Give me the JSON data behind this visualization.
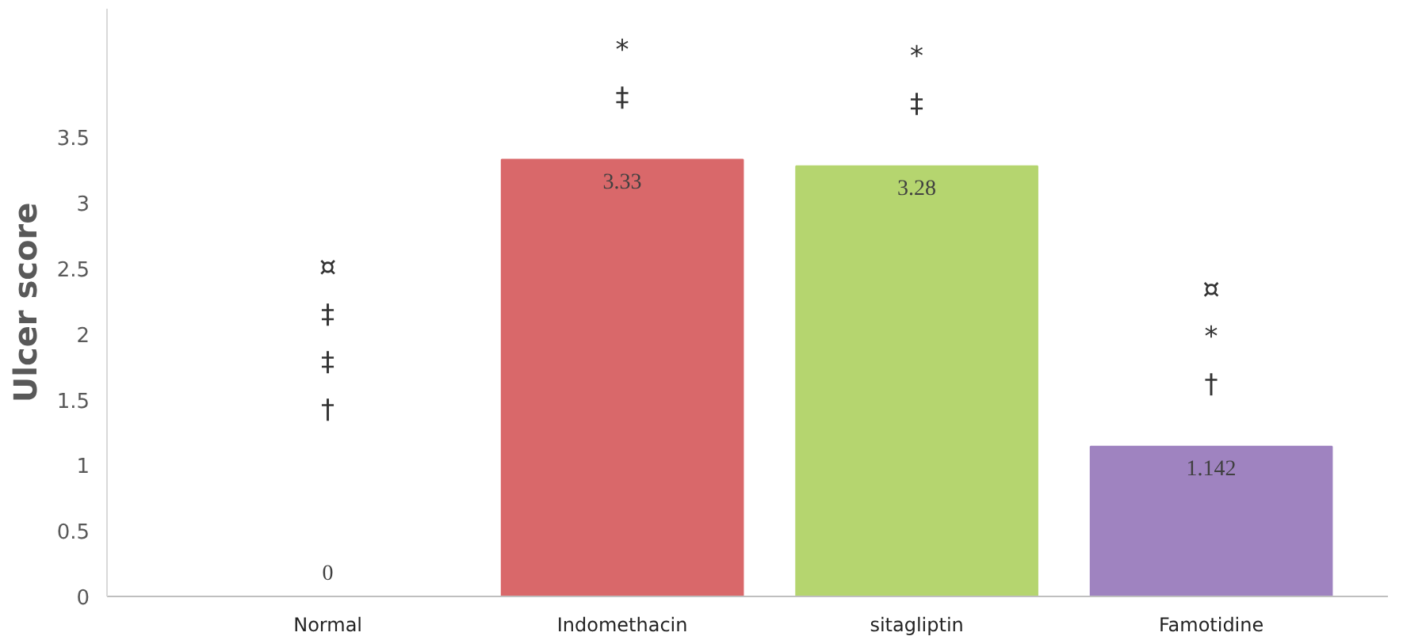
{
  "chart_data": {
    "type": "bar",
    "ylabel": "Ulcer score",
    "categories": [
      "Normal",
      "Indomethacin",
      "sitagliptin",
      "Famotidine"
    ],
    "values": [
      0,
      3.33,
      3.28,
      1.142
    ],
    "colors": [
      "#d9686a",
      "#d9686a",
      "#b5d56f",
      "#9f83c0"
    ],
    "value_labels": [
      "0",
      "3.33",
      "3.28",
      "1.142"
    ],
    "ylim": [
      0,
      4.48
    ],
    "yticks": [
      0,
      0.5,
      1,
      1.5,
      2,
      2.5,
      3,
      3.5
    ],
    "grid": false,
    "annotations": [
      "¤\n‡\n‡\n†",
      "*\n‡",
      "*\n‡",
      "¤\n*\n†"
    ]
  }
}
